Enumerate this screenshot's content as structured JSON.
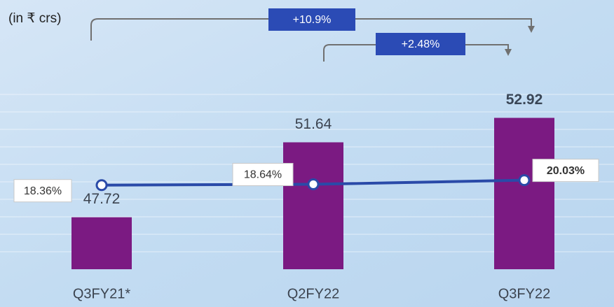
{
  "chart_data": {
    "type": "bar",
    "unit_label": "(in ₹ crs)",
    "categories": [
      "Q3FY21*",
      "Q2FY22",
      "Q3FY22"
    ],
    "series": [
      {
        "type": "bar",
        "color": "#7b1a82",
        "values": [
          47.72,
          51.64,
          52.92
        ]
      },
      {
        "type": "line",
        "color": "#2a4aa8",
        "axis": "y2",
        "values": [
          18.36,
          18.64,
          20.03
        ],
        "value_labels": [
          "18.36%",
          "18.64%",
          "20.03%"
        ]
      }
    ],
    "ylim": [
      45,
      54
    ],
    "y2lim": [
      -10,
      48
    ],
    "annotations": [
      "+10.9%",
      "+2.48%"
    ]
  }
}
